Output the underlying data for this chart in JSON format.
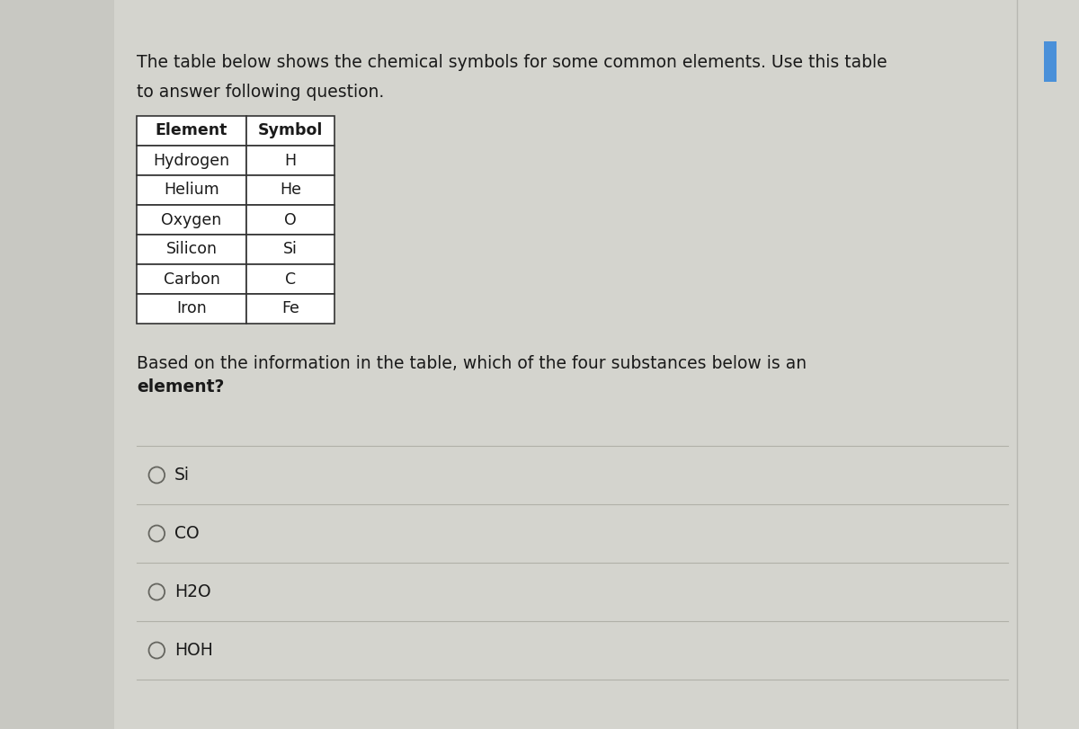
{
  "bg_color": "#d4d4ce",
  "left_bar_color": "#c8c8c2",
  "right_edge_color": "#b8b8b2",
  "blue_tab_color": "#4a90d9",
  "intro_text_line1": "The table below shows the chemical symbols for some common elements. Use this table",
  "intro_text_line2": "to answer following question.",
  "table_headers": [
    "Element",
    "Symbol"
  ],
  "table_rows": [
    [
      "Hydrogen",
      "H"
    ],
    [
      "Helium",
      "He"
    ],
    [
      "Oxygen",
      "O"
    ],
    [
      "Silicon",
      "Si"
    ],
    [
      "Carbon",
      "C"
    ],
    [
      "Iron",
      "Fe"
    ]
  ],
  "question_line1": "Based on the information in the table, which of the four substances below is an",
  "question_line2": "element?",
  "answer_options": [
    "Si",
    "CO",
    "H2O",
    "HOH"
  ],
  "text_color": "#1a1a1a",
  "table_border_color": "#333333",
  "divider_color": "#b0b0a8",
  "option_circle_color": "#666660",
  "font_size_intro": 13.5,
  "font_size_table": 12.5,
  "font_size_question": 13.5,
  "font_size_options": 13.5
}
